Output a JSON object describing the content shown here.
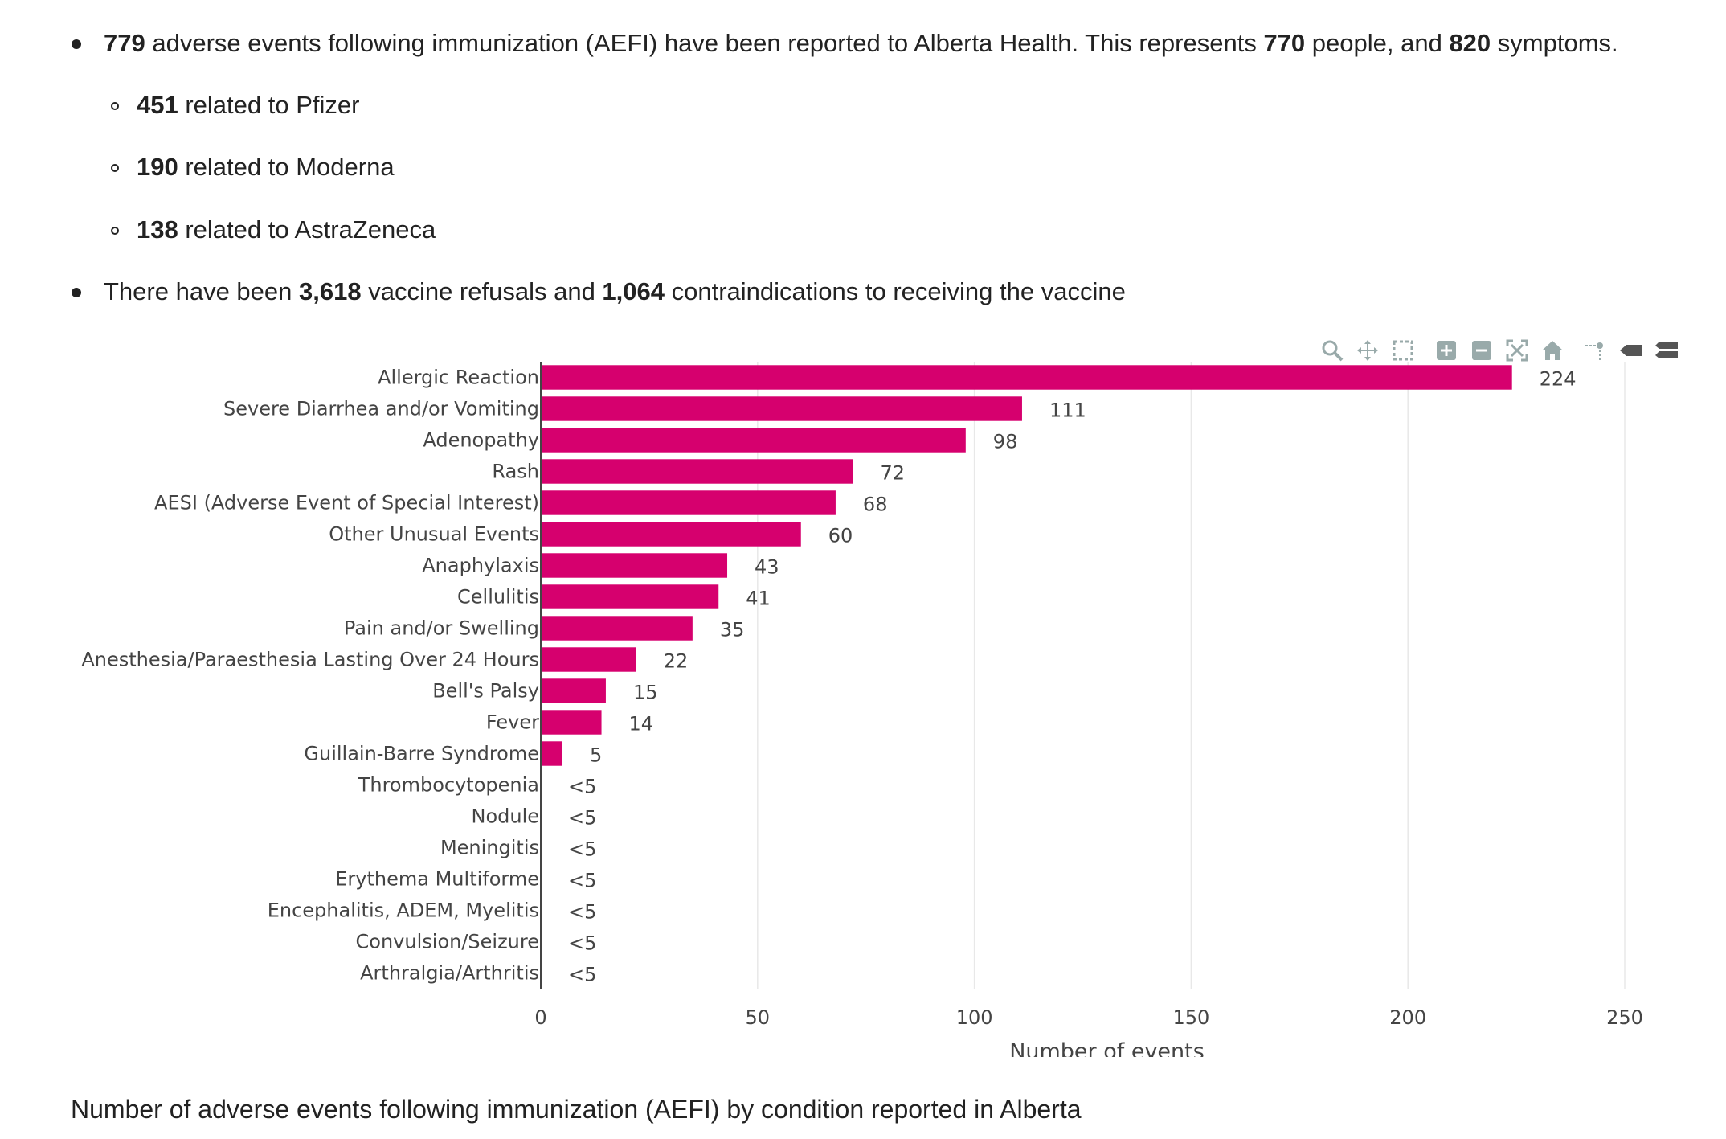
{
  "bullets": {
    "b1": {
      "n1": "779",
      "t1": " adverse events following immunization (AEFI) have been reported to Alberta Health. This represents ",
      "n2": "770",
      "t2": " people, and ",
      "n3": "820",
      "t3": " symptoms."
    },
    "pfizer": {
      "n": "451",
      "t": " related to Pfizer"
    },
    "moderna": {
      "n": "190",
      "t": " related to Moderna"
    },
    "astra": {
      "n": "138",
      "t": " related to AstraZeneca"
    },
    "b2": {
      "t0": "There have been ",
      "n1": "3,618",
      "t1": " vaccine refusals and ",
      "n2": "1,064",
      "t2": " contraindications to receiving the vaccine"
    }
  },
  "caption": "Number of adverse events following immunization (AEFI) by condition reported in Alberta",
  "modebar": {
    "icons": [
      "zoom-icon",
      "pan-icon",
      "select-box-icon",
      "zoom-in-icon",
      "zoom-out-icon",
      "autoscale-icon",
      "reset-axes-icon",
      "spike-lines-icon",
      "hover-closest-icon",
      "hover-compare-icon"
    ]
  },
  "chart_data": {
    "type": "bar",
    "orientation": "horizontal",
    "bar_color": "#d6006e",
    "categories": [
      "Allergic Reaction",
      "Severe Diarrhea and/or Vomiting",
      "Adenopathy",
      "Rash",
      "AESI (Adverse Event of Special Interest)",
      "Other Unusual Events",
      "Anaphylaxis",
      "Cellulitis",
      "Pain and/or Swelling",
      "Anesthesia/Paraesthesia Lasting Over 24 Hours",
      "Bell's Palsy",
      "Fever",
      "Guillain-Barre Syndrome",
      "Thrombocytopenia",
      "Nodule",
      "Meningitis",
      "Erythema Multiforme",
      "Encephalitis, ADEM, Myelitis",
      "Convulsion/Seizure",
      "Arthralgia/Arthritis"
    ],
    "values": [
      224,
      111,
      98,
      72,
      68,
      60,
      43,
      41,
      35,
      22,
      15,
      14,
      5,
      0,
      0,
      0,
      0,
      0,
      0,
      0
    ],
    "labels": [
      "224",
      "111",
      "98",
      "72",
      "68",
      "60",
      "43",
      "41",
      "35",
      "22",
      "15",
      "14",
      "5",
      "<5",
      "<5",
      "<5",
      "<5",
      "<5",
      "<5",
      "<5"
    ],
    "xlabel": "Number of events",
    "ylabel": "",
    "xlim": [
      0,
      250
    ],
    "xticks": [
      0,
      50,
      100,
      150,
      200,
      250
    ],
    "grid": true
  }
}
